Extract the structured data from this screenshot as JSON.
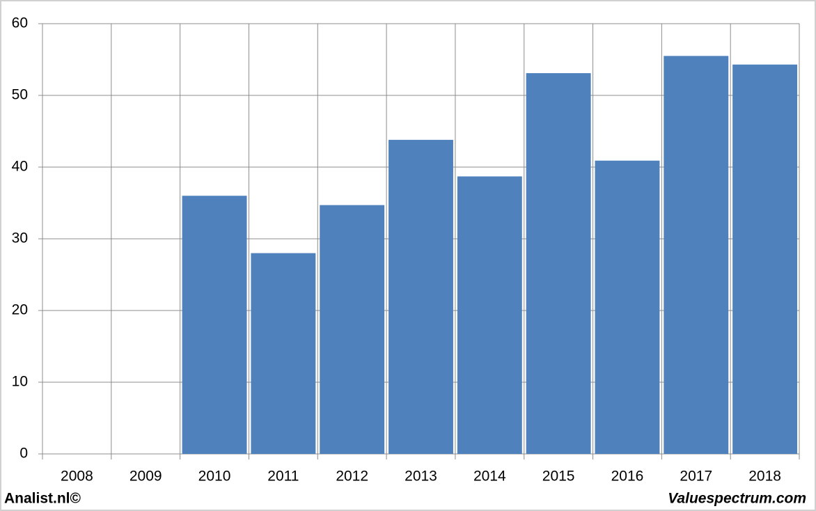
{
  "chart_data": {
    "type": "bar",
    "categories": [
      "2008",
      "2009",
      "2010",
      "2011",
      "2012",
      "2013",
      "2014",
      "2015",
      "2016",
      "2017",
      "2018"
    ],
    "values": [
      null,
      null,
      36.0,
      28.0,
      34.7,
      43.8,
      38.7,
      53.1,
      40.9,
      55.5,
      54.3
    ],
    "color": "#4f81bd",
    "ylim": [
      0,
      60
    ],
    "yticks": [
      0,
      10,
      20,
      30,
      40,
      50,
      60
    ],
    "grid": true
  },
  "footer": {
    "left": "Analist.nl©",
    "right": "Valuespectrum.com"
  }
}
